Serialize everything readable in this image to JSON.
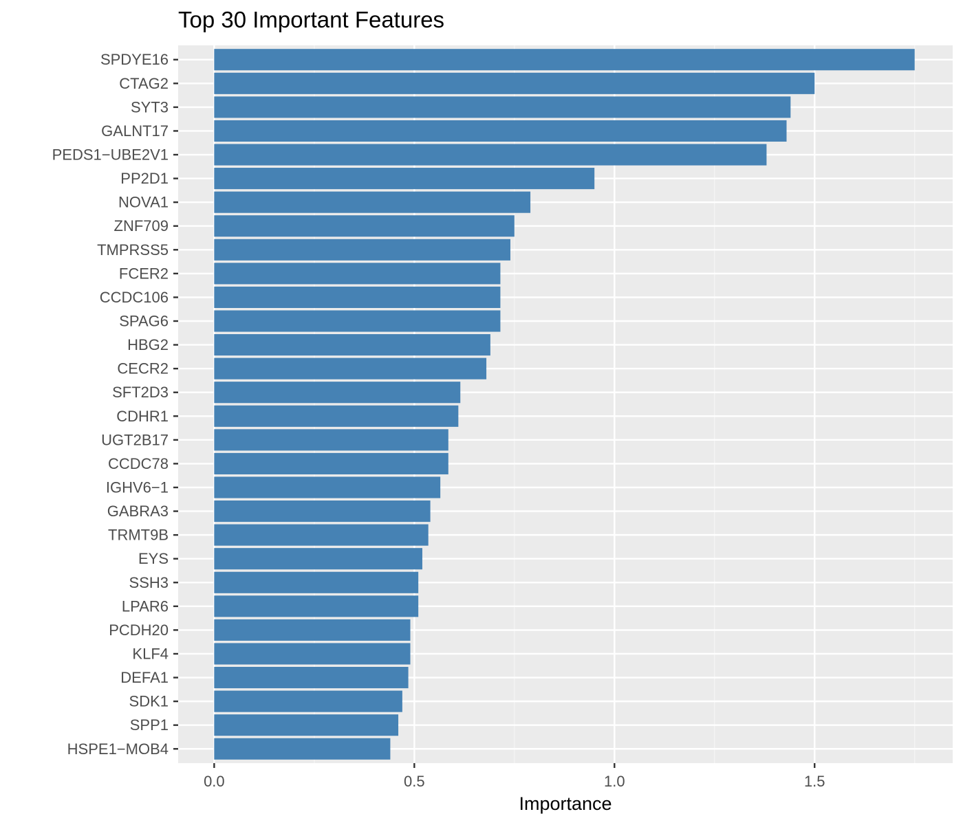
{
  "chart_data": {
    "type": "bar",
    "orientation": "horizontal",
    "title": "Top 30 Important Features",
    "xlabel": "Importance",
    "ylabel": "",
    "xlim": [
      -0.09,
      1.845
    ],
    "xticks": [
      0.0,
      0.5,
      1.0,
      1.5
    ],
    "xtick_labels": [
      "0.0",
      "0.5",
      "1.0",
      "1.5"
    ],
    "grid": true,
    "legend": "none",
    "colors": {
      "bar": "#4682B4",
      "panel_background": "#EBEBEB",
      "grid_major": "#FFFFFF",
      "grid_minor": "#F5F5F5",
      "tick_label": "#4D4D4D",
      "tick_mark": "#333333"
    },
    "categories": [
      "SPDYE16",
      "CTAG2",
      "SYT3",
      "GALNT17",
      "PEDS1−UBE2V1",
      "PP2D1",
      "NOVA1",
      "ZNF709",
      "TMPRSS5",
      "FCER2",
      "CCDC106",
      "SPAG6",
      "HBG2",
      "CECR2",
      "SFT2D3",
      "CDHR1",
      "UGT2B17",
      "CCDC78",
      "IGHV6−1",
      "GABRA3",
      "TRMT9B",
      "EYS",
      "SSH3",
      "LPAR6",
      "PCDH20",
      "KLF4",
      "DEFA1",
      "SDK1",
      "SPP1",
      "HSPE1−MOB4"
    ],
    "values": [
      1.75,
      1.5,
      1.44,
      1.43,
      1.38,
      0.95,
      0.79,
      0.75,
      0.74,
      0.715,
      0.715,
      0.715,
      0.69,
      0.68,
      0.615,
      0.61,
      0.585,
      0.585,
      0.565,
      0.54,
      0.535,
      0.52,
      0.51,
      0.51,
      0.49,
      0.49,
      0.485,
      0.47,
      0.46,
      0.44
    ]
  }
}
